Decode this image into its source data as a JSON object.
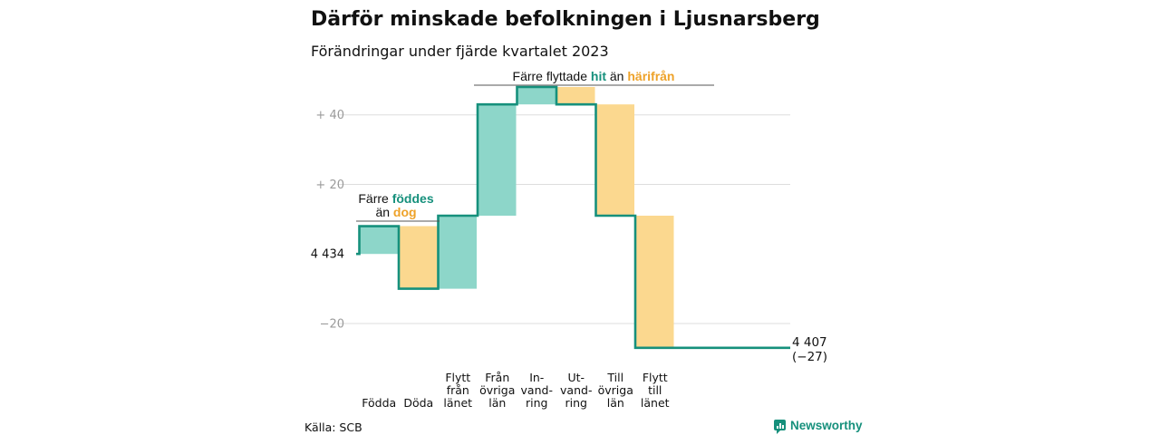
{
  "title": "Därför minskade befolkningen i Ljusnarsberg",
  "subtitle": "Förändringar under fjärde kvartalet 2023",
  "colors": {
    "teal": "#16907c",
    "teal_fill": "#8dd6c9",
    "orange": "#eea229",
    "orange_fill": "#fbd88f",
    "grid": "#dddddd",
    "tick": "#9a9a9a"
  },
  "chart_data": {
    "type": "waterfall",
    "start_value": 4434,
    "start_label": "4 434",
    "y_ticks": [
      {
        "value": 40,
        "label": "+  40"
      },
      {
        "value": 20,
        "label": "+  20"
      },
      {
        "value": -20,
        "label": "−20"
      }
    ],
    "ylim": [
      -26,
      48
    ],
    "steps": [
      {
        "label_lines": [
          "Födda"
        ],
        "delta": 8,
        "kind": "in"
      },
      {
        "label_lines": [
          "Döda"
        ],
        "delta": -18,
        "kind": "out"
      },
      {
        "label_lines": [
          "Flytt",
          "från",
          "länet"
        ],
        "delta": 21,
        "kind": "in"
      },
      {
        "label_lines": [
          "Från",
          "övriga",
          "län"
        ],
        "delta": 32,
        "kind": "in"
      },
      {
        "label_lines": [
          "In-",
          "vand-",
          "ring"
        ],
        "delta": 5,
        "kind": "in"
      },
      {
        "label_lines": [
          "Ut-",
          "vand-",
          "ring"
        ],
        "delta": -5,
        "kind": "out"
      },
      {
        "label_lines": [
          "Till",
          "övriga",
          "län"
        ],
        "delta": -32,
        "kind": "out"
      },
      {
        "label_lines": [
          "Flytt",
          "till",
          "länet"
        ],
        "delta": -38,
        "kind": "out"
      }
    ],
    "end_value_label": "4 407",
    "end_change_label": "(−27)"
  },
  "annotations": {
    "births": {
      "line1_a": "Färre ",
      "line1_b": "föddes",
      "line2_a": "än ",
      "line2_b": "dog"
    },
    "moves": {
      "a": "Färre flyttade ",
      "b": "hit",
      "c": " än ",
      "d": "härifrån"
    }
  },
  "footer": {
    "source": "Källa: SCB",
    "brand": "Newsworthy"
  }
}
